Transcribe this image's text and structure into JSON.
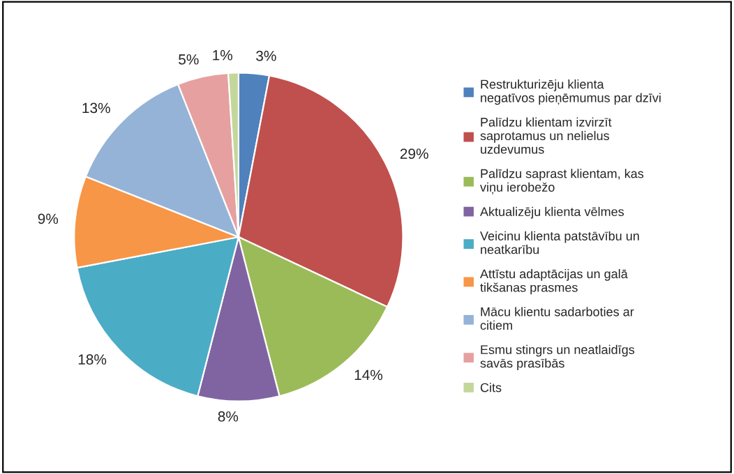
{
  "chart_data": {
    "type": "pie",
    "categories": [
      "Restrukturizēju klienta negatīvos pieņēmumus par dzīvi",
      "Palīdzu klientam izvirzīt saprotamus un nelielus uzdevumus",
      "Palīdzu saprast klientam, kas viņu ierobežo",
      "Aktualizēju klienta vēlmes",
      "Veicinu klienta patstāvību un neatkarību",
      "Attīstu adaptācijas un galā tikšanas prasmes",
      "Mācu klientu sadarboties ar citiem",
      "Esmu stingrs un neatlaidīgs savās prasībās",
      "Cits"
    ],
    "values": [
      3,
      29,
      14,
      8,
      18,
      9,
      13,
      5,
      1
    ],
    "value_labels": [
      "3%",
      "29%",
      "14%",
      "8%",
      "18%",
      "9%",
      "13%",
      "5%",
      "1%"
    ],
    "colors": [
      "#4f81bd",
      "#c0504d",
      "#9bbb59",
      "#8064a2",
      "#4bacc6",
      "#f79646",
      "#95b3d7",
      "#e6a0a0",
      "#c4d79b"
    ],
    "legend": "right"
  }
}
